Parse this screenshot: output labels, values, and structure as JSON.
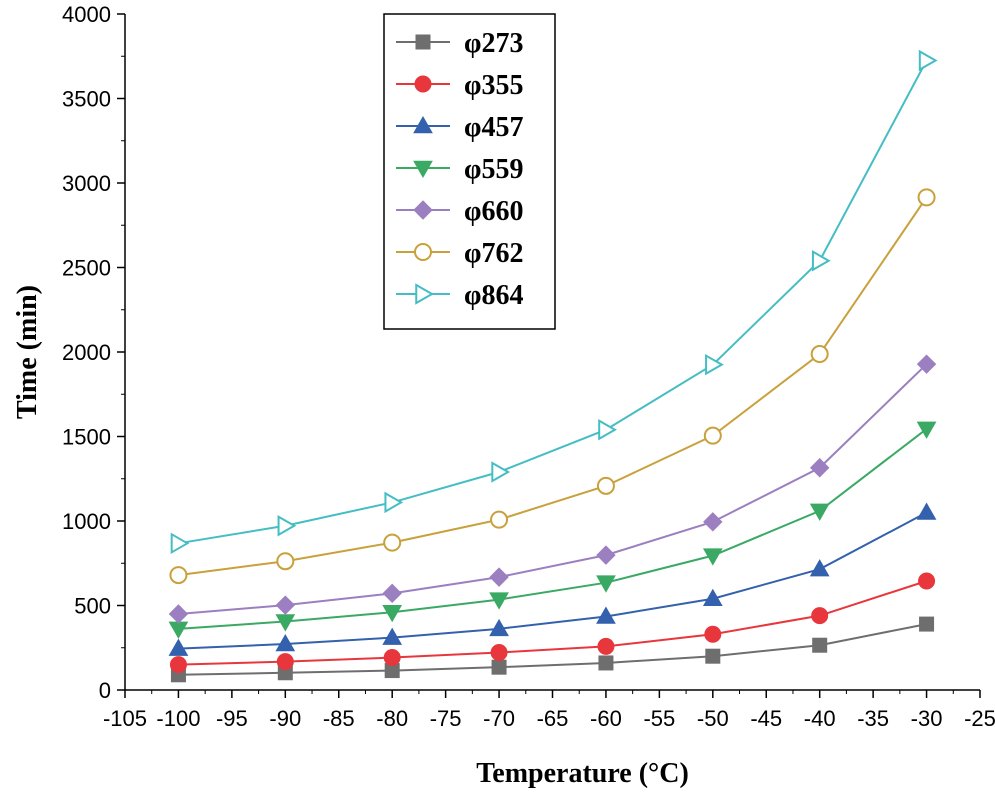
{
  "chart_data": {
    "type": "line",
    "title": "",
    "xlabel": "Temperature (°C)",
    "ylabel": "Time (min)",
    "xlim": [
      -105,
      -25
    ],
    "ylim": [
      0,
      4000
    ],
    "x_ticks": [
      -105,
      -100,
      -95,
      -90,
      -85,
      -80,
      -75,
      -70,
      -65,
      -60,
      -55,
      -50,
      -45,
      -40,
      -35,
      -30,
      -25
    ],
    "y_ticks": [
      0,
      500,
      1000,
      1500,
      2000,
      2500,
      3000,
      3500,
      4000
    ],
    "grid": false,
    "legend_position": "top-left",
    "x": [
      -100,
      -90,
      -80,
      -70,
      -60,
      -50,
      -40,
      -30
    ],
    "series": [
      {
        "name": "φ273",
        "color": "#6e6e6e",
        "marker": "square",
        "values": [
          90,
          102,
          115,
          135,
          160,
          200,
          265,
          390
        ]
      },
      {
        "name": "φ355",
        "color": "#e8373c",
        "marker": "circle",
        "values": [
          150,
          168,
          192,
          222,
          258,
          330,
          440,
          645
        ]
      },
      {
        "name": "φ457",
        "color": "#3361ad",
        "marker": "triangle-up",
        "values": [
          245,
          272,
          310,
          362,
          435,
          540,
          715,
          1050
        ]
      },
      {
        "name": "φ559",
        "color": "#3aa963",
        "marker": "triangle-down",
        "values": [
          362,
          405,
          460,
          535,
          635,
          795,
          1060,
          1545
        ]
      },
      {
        "name": "φ660",
        "color": "#9b7fc0",
        "marker": "diamond",
        "values": [
          450,
          502,
          572,
          668,
          798,
          995,
          1315,
          1928
        ]
      },
      {
        "name": "φ762",
        "color": "#c9a13c",
        "marker": "circle-open",
        "values": [
          680,
          762,
          872,
          1008,
          1208,
          1505,
          1988,
          2915
        ]
      },
      {
        "name": "φ864",
        "color": "#45bdc4",
        "marker": "triangle-right-open",
        "values": [
          868,
          972,
          1110,
          1290,
          1540,
          1925,
          2540,
          3725
        ]
      }
    ]
  }
}
